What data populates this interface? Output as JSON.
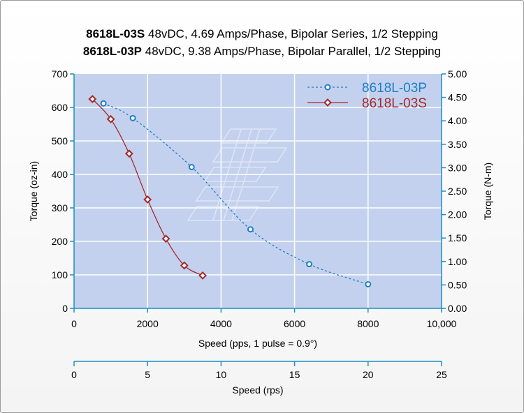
{
  "title": {
    "line1_model": "8618L-03S",
    "line1_rest": " 48vDC, 4.69 Amps/Phase, Bipolar Series, 1/2 Stepping",
    "line2_model": "8618L-03P",
    "line2_rest": " 48vDC, 9.38 Amps/Phase, Bipolar Parallel, 1/2 Stepping"
  },
  "colors": {
    "plot_bg": "#c3d1ee",
    "grid": "#ffffff",
    "axis": "#1a8fc0",
    "series_p": "#1f7fc4",
    "series_s": "#a32a2a"
  },
  "chart_data": {
    "type": "line",
    "xlabel": "Speed (pps, 1 pulse = 0.9°)",
    "ylabel": "Torque (oz-in)",
    "y2label": "Torque (N-m)",
    "x2label": "Speed (rps)",
    "xlim": [
      0,
      10000
    ],
    "ylim": [
      0,
      700
    ],
    "y2lim": [
      0,
      5
    ],
    "x2lim": [
      0,
      25
    ],
    "xticks": [
      "0",
      "2000",
      "4000",
      "6000",
      "8000",
      "10,000"
    ],
    "yticks": [
      "0",
      "100",
      "200",
      "300",
      "400",
      "500",
      "600",
      "700"
    ],
    "y2ticks": [
      "0.00",
      "0.50",
      "1.00",
      "1.50",
      "2.00",
      "2.50",
      "3.00",
      "3.50",
      "4.00",
      "4.50",
      "5.00"
    ],
    "x2ticks": [
      "0",
      "5",
      "10",
      "15",
      "20",
      "25"
    ],
    "grid": true,
    "legend_position": "top-right",
    "series": [
      {
        "name": "8618L-03P",
        "style": "dashed",
        "marker": "circle",
        "x": [
          800,
          1600,
          3200,
          4800,
          6400,
          8000
        ],
        "y": [
          612,
          568,
          422,
          236,
          132,
          72
        ]
      },
      {
        "name": "8618L-03S",
        "style": "solid",
        "marker": "diamond",
        "x": [
          500,
          1000,
          1500,
          2000,
          2500,
          3000,
          3500
        ],
        "y": [
          625,
          565,
          462,
          325,
          208,
          128,
          98
        ]
      }
    ]
  }
}
